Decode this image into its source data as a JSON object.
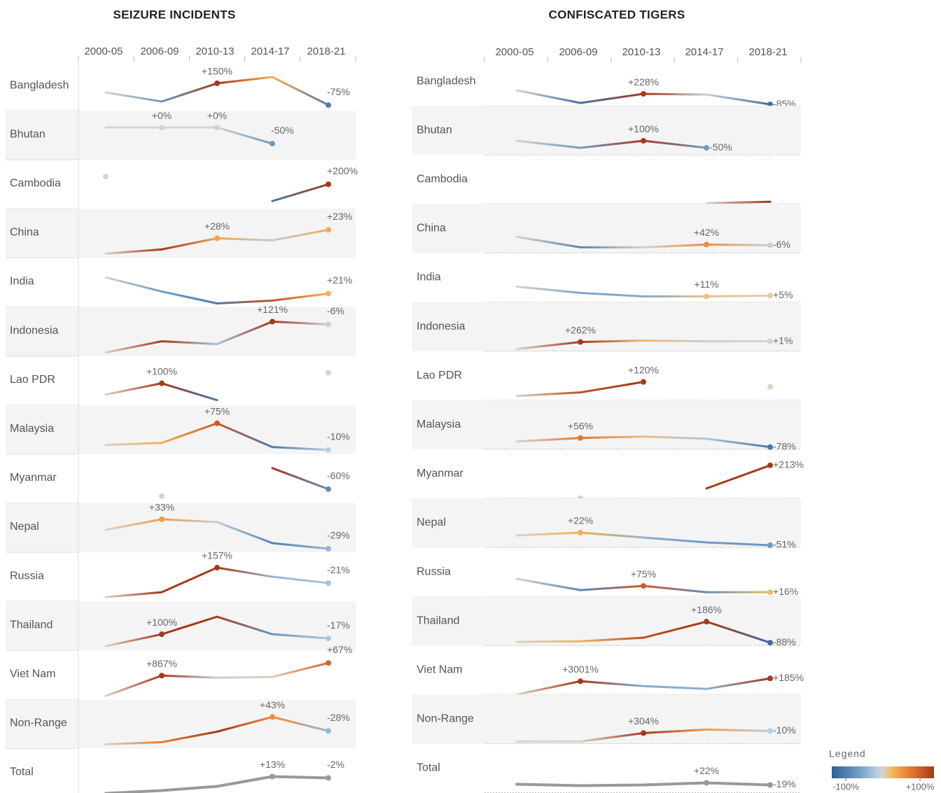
{
  "chart_data": [
    {
      "type": "line",
      "title": "SEIZURE INCIDENTS",
      "categories": [
        "2000-05",
        "2006-09",
        "2010-13",
        "2014-17",
        "2018-21"
      ],
      "ylim": [
        0,
        70
      ],
      "rows": [
        {
          "name": "Bangladesh",
          "values": [
            26,
            13,
            39,
            48,
            8
          ],
          "changes": [
            null,
            null,
            150,
            null,
            -75
          ],
          "change_labels": [
            null,
            null,
            "+150%",
            null,
            "-75%"
          ]
        },
        {
          "name": "Bhutan",
          "values": [
            46,
            46,
            46,
            23,
            null
          ],
          "changes": [
            null,
            0,
            0,
            -50,
            null
          ],
          "change_labels": [
            null,
            "+0%",
            "+0%",
            "-50%",
            null
          ]
        },
        {
          "name": "Cambodia",
          "values": [
            46,
            null,
            null,
            11,
            35
          ],
          "changes": [
            null,
            null,
            null,
            null,
            200
          ],
          "change_labels": [
            null,
            null,
            null,
            null,
            "+200%"
          ]
        },
        {
          "name": "China",
          "values": [
            6,
            12,
            28,
            25,
            40
          ],
          "changes": [
            null,
            null,
            28,
            null,
            23
          ],
          "change_labels": [
            null,
            null,
            "+28%",
            null,
            "+23%"
          ]
        },
        {
          "name": "India",
          "values": [
            42,
            22,
            5,
            9,
            19
          ],
          "changes": [
            null,
            null,
            null,
            null,
            21
          ],
          "change_labels": [
            null,
            null,
            null,
            null,
            "+21%"
          ]
        },
        {
          "name": "Indonesia",
          "values": [
            5,
            21,
            17,
            49,
            45
          ],
          "changes": [
            null,
            null,
            null,
            121,
            -6
          ],
          "change_labels": [
            null,
            null,
            null,
            "+121%",
            "-6%"
          ]
        },
        {
          "name": "Lao PDR",
          "values": [
            15,
            31,
            7,
            null,
            46
          ],
          "changes": [
            null,
            100,
            null,
            null,
            null
          ],
          "change_labels": [
            null,
            "+100%",
            null,
            null,
            null
          ]
        },
        {
          "name": "Malaysia",
          "values": [
            13,
            16,
            44,
            10,
            6
          ],
          "changes": [
            null,
            null,
            75,
            null,
            -10
          ],
          "change_labels": [
            null,
            null,
            "+75%",
            null,
            "-10%"
          ]
        },
        {
          "name": "Myanmar",
          "values": [
            null,
            10,
            null,
            50,
            20
          ],
          "changes": [
            null,
            null,
            null,
            null,
            -60
          ],
          "change_labels": [
            null,
            null,
            null,
            null,
            "-60%"
          ]
        },
        {
          "name": "Nepal",
          "values": [
            32,
            47,
            43,
            13,
            5
          ],
          "changes": [
            null,
            33,
            null,
            null,
            -29
          ],
          "change_labels": [
            null,
            "+33%",
            null,
            null,
            "-29%"
          ]
        },
        {
          "name": "Russia",
          "values": [
            6,
            13,
            48,
            35,
            26
          ],
          "changes": [
            null,
            null,
            157,
            null,
            -21
          ],
          "change_labels": [
            null,
            null,
            "+157%",
            null,
            "-21%"
          ]
        },
        {
          "name": "Thailand",
          "values": [
            6,
            23,
            48,
            23,
            17
          ],
          "changes": [
            null,
            100,
            null,
            null,
            -17
          ],
          "change_labels": [
            null,
            "+100%",
            null,
            null,
            "-17%"
          ]
        },
        {
          "name": "Viet Nam",
          "values": [
            5,
            34,
            31,
            32,
            52
          ],
          "changes": [
            null,
            867,
            null,
            null,
            67
          ],
          "change_labels": [
            null,
            "+867%",
            null,
            null,
            "+67%"
          ]
        },
        {
          "name": "Non-Range",
          "values": [
            6,
            9,
            24,
            45,
            25
          ],
          "changes": [
            null,
            null,
            null,
            43,
            -28
          ],
          "change_labels": [
            null,
            null,
            null,
            "+43%",
            "-28%"
          ]
        },
        {
          "name": "Total",
          "color": "#999999",
          "values": [
            6,
            10,
            16,
            30,
            28
          ],
          "changes": [
            null,
            null,
            null,
            13,
            -2
          ],
          "change_labels": [
            null,
            null,
            null,
            "+13%",
            "-2%"
          ]
        }
      ]
    },
    {
      "type": "line",
      "title": "CONFISCATED TIGERS",
      "categories": [
        "2000-05",
        "2006-09",
        "2010-13",
        "2014-17",
        "2018-21"
      ],
      "ylim": [
        0,
        70
      ],
      "rows": [
        {
          "name": "Bangladesh",
          "values": [
            22,
            4,
            17,
            16,
            2
          ],
          "changes": [
            null,
            null,
            228,
            null,
            -85
          ],
          "change_labels": [
            null,
            null,
            "+228%",
            null,
            "-85%"
          ]
        },
        {
          "name": "Bhutan",
          "values": [
            20,
            10,
            20,
            10,
            null
          ],
          "changes": [
            null,
            null,
            100,
            -50,
            null
          ],
          "change_labels": [
            null,
            null,
            "+100%",
            "-50%",
            null
          ]
        },
        {
          "name": "Cambodia",
          "values": [
            null,
            null,
            null,
            1,
            3
          ],
          "changes": [
            null,
            null,
            null,
            null,
            null
          ],
          "change_labels": [
            null,
            null,
            null,
            null,
            null
          ]
        },
        {
          "name": "China",
          "values": [
            23,
            8,
            8,
            12,
            11
          ],
          "changes": [
            null,
            null,
            null,
            42,
            -6
          ],
          "change_labels": [
            null,
            null,
            null,
            "+42%",
            "-6%"
          ]
        },
        {
          "name": "India",
          "values": [
            22,
            13,
            8,
            8,
            9
          ],
          "changes": [
            null,
            null,
            null,
            11,
            5
          ],
          "change_labels": [
            null,
            null,
            null,
            "+11%",
            "+5%"
          ]
        },
        {
          "name": "Indonesia",
          "values": [
            3,
            13,
            15,
            14,
            14
          ],
          "changes": [
            null,
            262,
            null,
            null,
            1
          ],
          "change_labels": [
            null,
            "+262%",
            null,
            null,
            "+1%"
          ]
        },
        {
          "name": "Lao PDR",
          "values": [
            6,
            11,
            26,
            null,
            19
          ],
          "changes": [
            null,
            null,
            120,
            null,
            null
          ],
          "change_labels": [
            null,
            null,
            "+120%",
            null,
            null
          ]
        },
        {
          "name": "Malaysia",
          "values": [
            11,
            16,
            18,
            15,
            3
          ],
          "changes": [
            null,
            56,
            null,
            null,
            -78
          ],
          "change_labels": [
            null,
            "+56%",
            null,
            null,
            "-78%"
          ]
        },
        {
          "name": "Myanmar",
          "values": [
            null,
            0,
            null,
            14,
            47
          ],
          "changes": [
            null,
            null,
            null,
            null,
            213
          ],
          "change_labels": [
            null,
            null,
            null,
            null,
            "+213%"
          ]
        },
        {
          "name": "Nepal",
          "values": [
            17,
            21,
            14,
            7,
            3
          ],
          "changes": [
            null,
            22,
            null,
            null,
            -51
          ],
          "change_labels": [
            null,
            "+22%",
            null,
            null,
            "-51%"
          ]
        },
        {
          "name": "Russia",
          "values": [
            25,
            9,
            15,
            6,
            6
          ],
          "changes": [
            null,
            null,
            75,
            null,
            16
          ],
          "change_labels": [
            null,
            null,
            "+75%",
            null,
            "+16%"
          ]
        },
        {
          "name": "Thailand",
          "values": [
            5,
            6,
            11,
            34,
            4
          ],
          "changes": [
            null,
            null,
            null,
            186,
            -88
          ],
          "change_labels": [
            null,
            null,
            null,
            "+186%",
            "-88%"
          ]
        },
        {
          "name": "Viet Nam",
          "values": [
            0,
            19,
            12,
            8,
            23
          ],
          "changes": [
            null,
            3001,
            null,
            null,
            185
          ],
          "change_labels": [
            null,
            "+3001%",
            null,
            null,
            "+185%"
          ]
        },
        {
          "name": "Non-Range",
          "values": [
            3,
            3,
            15,
            20,
            18
          ],
          "changes": [
            null,
            null,
            304,
            null,
            -10
          ],
          "change_labels": [
            null,
            null,
            "+304%",
            null,
            "-10%"
          ]
        },
        {
          "name": "Total",
          "color": "#999999",
          "values": [
            12,
            10,
            11,
            14,
            11
          ],
          "changes": [
            null,
            null,
            null,
            22,
            -19
          ],
          "change_labels": [
            null,
            null,
            null,
            "+22%",
            "-19%"
          ]
        }
      ]
    }
  ],
  "legend": {
    "title": "Legend",
    "ticks": [
      {
        "value": -100,
        "label": "-100%"
      },
      {
        "value": 100,
        "label": "+100%"
      }
    ]
  }
}
